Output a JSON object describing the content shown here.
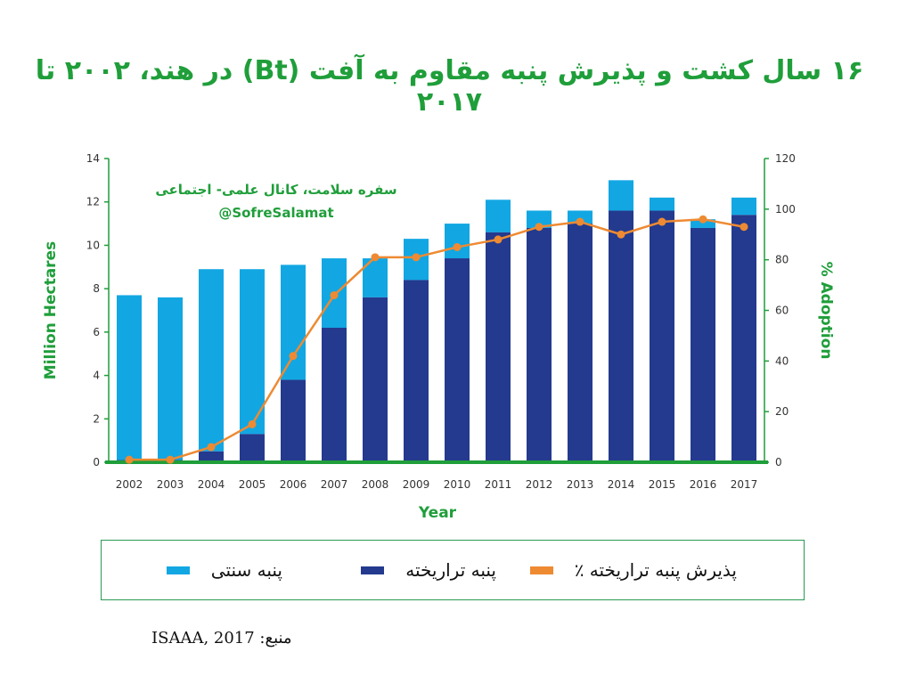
{
  "title": "۱۶ سال کشت و پذیرش پنبه مقاوم به آفت (Bt)  در هند، ۲۰۰۲ تا ۲۰۱۷",
  "watermark": {
    "line1": "سفره سلامت، کانال علمی- اجتماعی",
    "line2": "@SofreSalamat"
  },
  "legend": {
    "conventional": "پنبه سنتی",
    "biotech": "پنبه تراریخته",
    "adoption": "پذیرش پنبه تراریخته ٪"
  },
  "source": "منبع: ISAAA, 2017",
  "colors": {
    "conventional": "#12a7e3",
    "biotech": "#233a8e",
    "adoption": "#ee8a32",
    "axis": "#1f9e3a",
    "title": "#1f9e3a"
  },
  "chart_data": {
    "type": "bar",
    "xlabel": "Year",
    "ylabel_left": "Million Hectares",
    "ylabel_right": "% Adoption",
    "ylim_left": [
      0,
      14
    ],
    "ylim_right": [
      0,
      120
    ],
    "yticks_left": [
      0,
      2,
      4,
      6,
      8,
      10,
      12,
      14
    ],
    "yticks_right": [
      0,
      20,
      40,
      60,
      80,
      100,
      120
    ],
    "categories": [
      "2002",
      "2003",
      "2004",
      "2005",
      "2006",
      "2007",
      "2008",
      "2009",
      "2010",
      "2011",
      "2012",
      "2013",
      "2014",
      "2015",
      "2016",
      "2017"
    ],
    "series": [
      {
        "name": "پنبه تراریخته",
        "kind": "stacked-bar-bottom",
        "axis": "left",
        "values": [
          0.1,
          0.1,
          0.5,
          1.3,
          3.8,
          6.2,
          7.6,
          8.4,
          9.4,
          10.6,
          10.8,
          11.0,
          11.6,
          11.6,
          10.8,
          11.4
        ]
      },
      {
        "name": "پنبه سنتی",
        "kind": "stacked-bar-top",
        "axis": "left",
        "values": [
          7.6,
          7.5,
          8.4,
          7.6,
          5.3,
          3.2,
          1.8,
          1.9,
          1.6,
          1.5,
          0.8,
          0.6,
          1.4,
          0.6,
          0.4,
          0.8
        ]
      },
      {
        "name": "پذیرش پنبه تراریخته ٪",
        "kind": "line",
        "axis": "right",
        "values": [
          1,
          1,
          6,
          15,
          42,
          66,
          81,
          81,
          85,
          88,
          93,
          95,
          90,
          95,
          96,
          93
        ]
      }
    ]
  }
}
